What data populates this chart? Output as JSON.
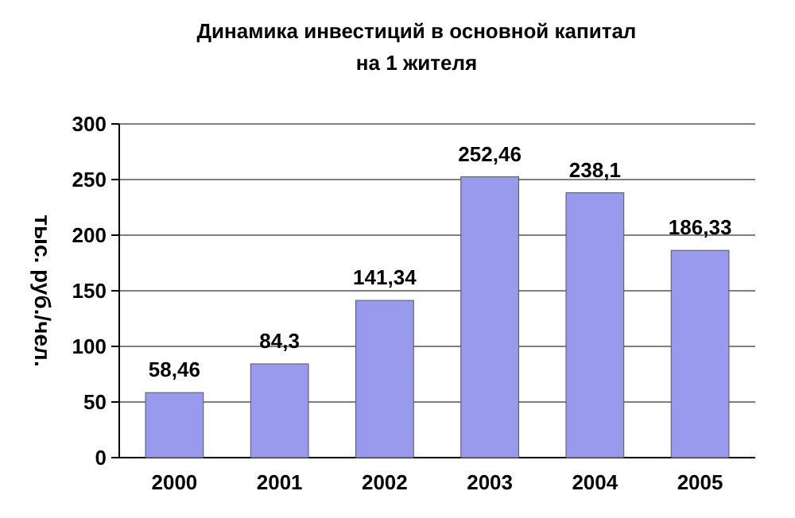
{
  "chart_data": {
    "type": "bar",
    "title": "Динамика инвестиций в основной капитал\nна 1 жителя",
    "ylabel": "тыс. руб./чел.",
    "categories": [
      "2000",
      "2001",
      "2002",
      "2003",
      "2004",
      "2005"
    ],
    "values": [
      58.46,
      84.3,
      141.34,
      252.46,
      238.1,
      186.33
    ],
    "value_labels": [
      "58,46",
      "84,3",
      "141,34",
      "252,46",
      "238,1",
      "186,33"
    ],
    "color": "#9999ee",
    "ylim": [
      0,
      300
    ],
    "yticks": [
      0,
      50,
      100,
      150,
      200,
      250,
      300
    ],
    "grid": "y"
  }
}
